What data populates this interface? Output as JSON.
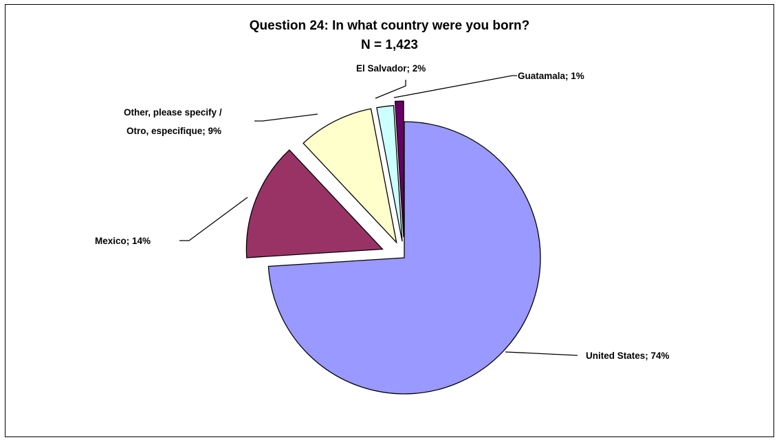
{
  "chart_data": {
    "type": "pie",
    "title": "Question 24: In what country were you born?",
    "subtitle": "N = 1,423",
    "slices": [
      {
        "label": "United States; 74%",
        "value": 74,
        "color": "#9999ff",
        "exploded": false
      },
      {
        "label": "Mexico; 14%",
        "value": 14,
        "color": "#993366",
        "exploded": true
      },
      {
        "label_lines": [
          "Other, please specify /",
          "Otro, especifique; 9%"
        ],
        "value": 9,
        "color": "#ffffcc",
        "exploded": true
      },
      {
        "label": "El Salvador; 2%",
        "value": 2,
        "color": "#ccffff",
        "exploded": true
      },
      {
        "label": "Guatamala; 1%",
        "value": 1,
        "color": "#660066",
        "exploded": true
      }
    ],
    "legend": "none",
    "border": true
  }
}
